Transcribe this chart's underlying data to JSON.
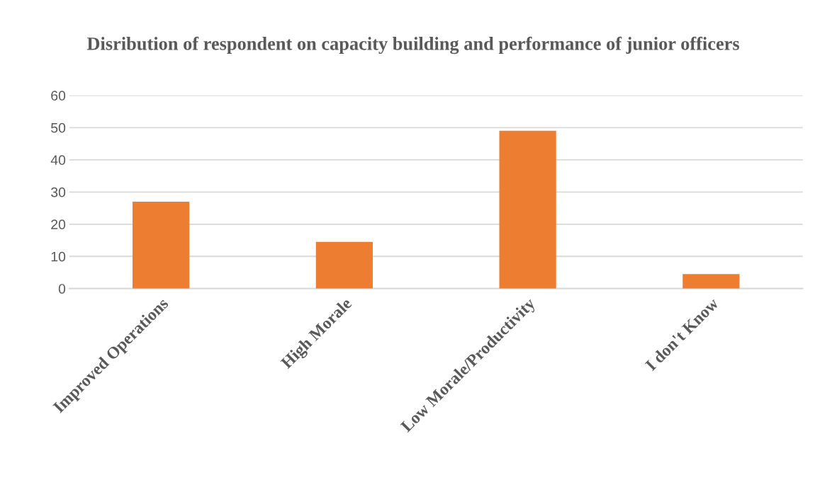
{
  "chart_data": {
    "type": "bar",
    "title": "Disribution of respondent on capacity building and performance of junior officers",
    "categories": [
      "Improved Operations",
      "High Morale",
      "Low Morale/Productivity",
      "I don't Know"
    ],
    "values": [
      27,
      14.5,
      49,
      4.5
    ],
    "color": "#ed7d31",
    "ylim": [
      0,
      60
    ],
    "yticks": [
      0,
      10,
      20,
      30,
      40,
      50,
      60
    ],
    "grid": "y"
  }
}
